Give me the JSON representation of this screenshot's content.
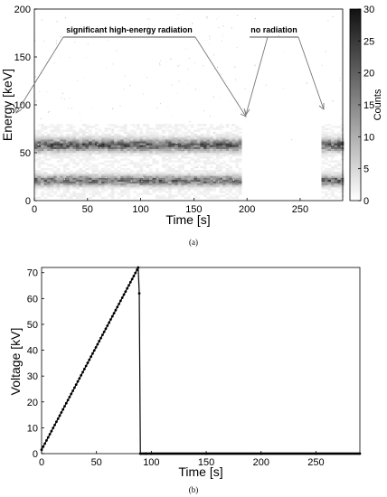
{
  "chart_data": [
    {
      "panel_label": "(a)",
      "type": "heatmap",
      "xlabel": "Time [s]",
      "ylabel": "Energy [keV]",
      "xlim": [
        0,
        290
      ],
      "ylim": [
        0,
        200
      ],
      "xticks": [
        0,
        50,
        100,
        150,
        200,
        250
      ],
      "yticks": [
        0,
        50,
        100,
        150,
        200
      ],
      "colorbar": {
        "label": "Counts",
        "range": [
          0,
          30
        ],
        "ticks": [
          0,
          5,
          10,
          15,
          20,
          25,
          30
        ]
      },
      "bands": [
        {
          "energy_center": 57,
          "energy_width": 12,
          "intensity": 22
        },
        {
          "energy_center": 20,
          "energy_width": 10,
          "intensity": 20
        }
      ],
      "active_time_ranges": [
        [
          0,
          193
        ],
        [
          270,
          290
        ]
      ],
      "annotations": [
        {
          "text": "significant high-energy radiation"
        },
        {
          "text": "no radiation"
        }
      ]
    },
    {
      "panel_label": "(b)",
      "type": "line",
      "xlabel": "Time [s]",
      "ylabel": "Voltage [kV]",
      "xlim": [
        0,
        290
      ],
      "ylim": [
        0,
        72
      ],
      "xticks": [
        0,
        50,
        100,
        150,
        200,
        250
      ],
      "yticks": [
        0,
        10,
        20,
        30,
        40,
        50,
        60,
        70
      ],
      "x": [
        0,
        1.5,
        3,
        4.5,
        6,
        7.5,
        9,
        10.5,
        12,
        13.5,
        15,
        16.5,
        18,
        19.5,
        21,
        22.5,
        24,
        25.5,
        27,
        28.5,
        30,
        31.5,
        33,
        34.5,
        36,
        37.5,
        39,
        40.5,
        42,
        43.5,
        45,
        46.5,
        48,
        49.5,
        51,
        52.5,
        54,
        55.5,
        57,
        58.5,
        60,
        61.5,
        63,
        64.5,
        66,
        67.5,
        69,
        70.5,
        72,
        73.5,
        75,
        76.5,
        78,
        79.5,
        81,
        82.5,
        84,
        85.5,
        87,
        88,
        89,
        90,
        95,
        100,
        150,
        200,
        250,
        290
      ],
      "y": [
        1.5,
        2.7,
        3.9,
        5.1,
        6.3,
        7.5,
        8.7,
        9.9,
        11.1,
        12.3,
        13.5,
        14.7,
        15.9,
        17.1,
        18.3,
        19.5,
        20.7,
        21.9,
        23.1,
        24.3,
        25.5,
        26.7,
        27.9,
        29.1,
        30.3,
        31.5,
        32.7,
        33.9,
        35.1,
        36.3,
        37.5,
        38.7,
        39.9,
        41.1,
        42.3,
        43.5,
        44.7,
        45.9,
        47.1,
        48.3,
        49.5,
        50.7,
        51.9,
        53.1,
        54.3,
        55.5,
        56.7,
        57.9,
        59.1,
        60.3,
        61.5,
        62.7,
        63.9,
        65.1,
        66.3,
        67.5,
        68.7,
        69.9,
        71.1,
        72,
        62,
        0,
        0,
        0,
        0,
        0,
        0,
        0
      ]
    }
  ]
}
